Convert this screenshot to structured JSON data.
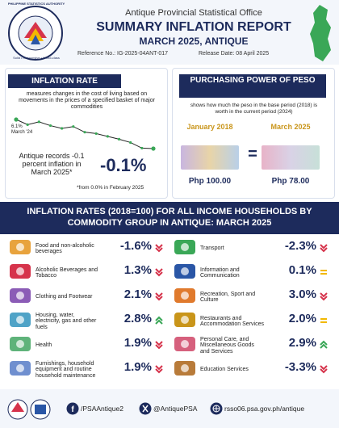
{
  "header": {
    "agency": "Antique Provincial Statistical Office",
    "title": "SUMMARY INFLATION REPORT",
    "subtitle": "MARCH 2025, ANTIQUE",
    "reference": "Reference No.: IG-2025-04ANT-017",
    "release_date": "Release Date: 08 April 2025",
    "logo_text": "PHILIPPINE STATISTICS AUTHORITY",
    "logo_motto": "Solid • Responsive • World-class"
  },
  "inflation_rate": {
    "heading": "INFLATION RATE",
    "description": "measures changes in the cost of living based on movements in the prices of a specified basket of major commodities",
    "trend": {
      "values": [
        6.1,
        5.0,
        5.6,
        4.8,
        4.2,
        4.6,
        3.4,
        3.1,
        2.5,
        1.9,
        1.2,
        0.0,
        -0.1
      ],
      "start_label": "6.1%",
      "start_date": "March '24"
    },
    "statement": "Antique records -0.1 percent inflation in March 2025*",
    "headline": "-0.1%",
    "footnote": "*from 0.0% in February 2025"
  },
  "purchasing_power": {
    "heading": "PURCHASING POWER OF PESO",
    "description": "shows how much the peso in the base period (2018) is worth in the current period (2024)",
    "periods": [
      {
        "label": "January 2018",
        "amount": "Php 100.00"
      },
      {
        "label": "March 2025",
        "amount": "Php 78.00"
      }
    ],
    "equals": "="
  },
  "commodity": {
    "heading": "INFLATION RATES (2018=100) FOR ALL INCOME HOUSEHOLDS BY COMMODITY GROUP IN ANTIQUE: MARCH 2025",
    "items": [
      {
        "label": "Food and non-alcoholic beverages",
        "value": "-1.6%",
        "direction": "down"
      },
      {
        "label": "Transport",
        "value": "-2.3%",
        "direction": "down"
      },
      {
        "label": "Alcoholic Beverages and Tobacco",
        "value": "1.3%",
        "direction": "down"
      },
      {
        "label": "Information and Communication",
        "value": "0.1%",
        "direction": "unchanged"
      },
      {
        "label": "Clothing and Footwear",
        "value": "2.1%",
        "direction": "down"
      },
      {
        "label": "Recreation, Sport and Culture",
        "value": "3.0%",
        "direction": "down"
      },
      {
        "label": "Housing, water, electricity, gas and other fuels",
        "value": "2.8%",
        "direction": "up"
      },
      {
        "label": "Restaurants and Accommodation Services",
        "value": "2.0%",
        "direction": "unchanged"
      },
      {
        "label": "Health",
        "value": "1.9%",
        "direction": "down"
      },
      {
        "label": "Personal Care, and Miscellaneous Goods and Services",
        "value": "2.9%",
        "direction": "up"
      },
      {
        "label": "Furnishings, household equipment and routine household maintenance",
        "value": "1.9%",
        "direction": "down"
      },
      {
        "label": "Education Services",
        "value": "-3.3%",
        "direction": "down"
      }
    ]
  },
  "footer": {
    "facebook": "/PSAAntique2",
    "x_handle": "@AntiquePSA",
    "website": "rsso06.psa.gov.ph/antique"
  }
}
